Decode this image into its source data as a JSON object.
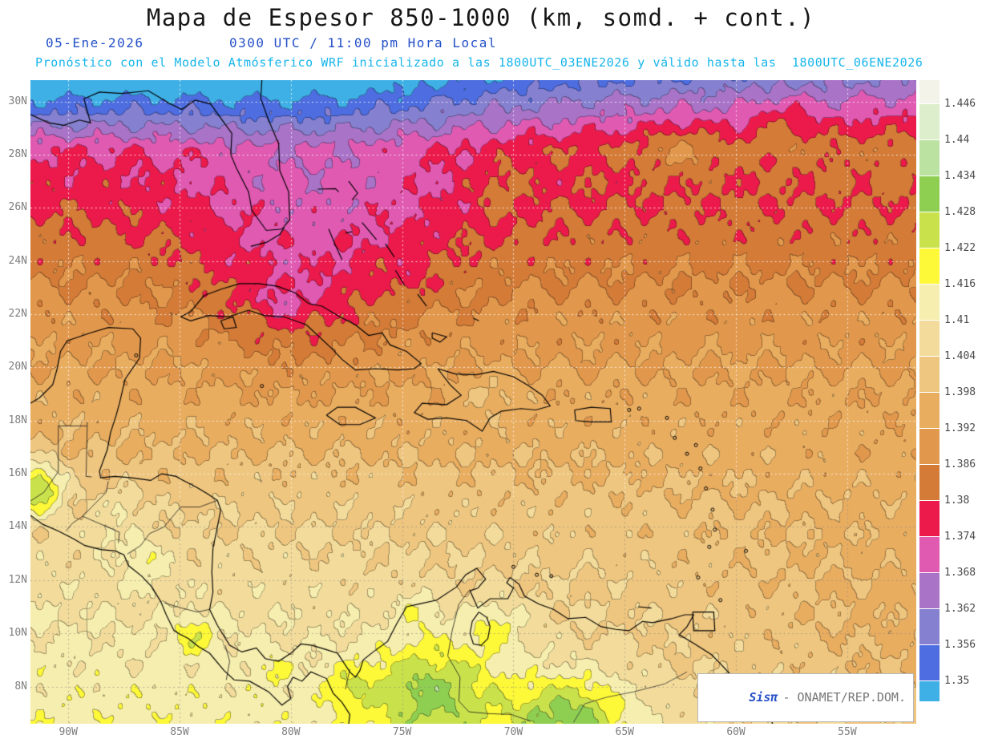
{
  "header": {
    "title": "Mapa de Espesor 850-1000 (km, somd. + cont.)",
    "date": "05-Ene-2026",
    "time": "0300 UTC / 11:00 pm Hora Local",
    "forecast": "Pronóstico con el Modelo Atmósferico WRF inicializado a las 1800UTC_03ENE2026 y válido hasta las  1800UTC_06ENE2026"
  },
  "watermark": {
    "brand": "Sisπ",
    "text": "- ONAMET/REP.DOM."
  },
  "colors": {
    "title_text": "#161616",
    "date_text": "#2450c8",
    "forecast_text": "#17b5ec",
    "axis_text": "#7e7e7e",
    "colorbar_text": "#4a4a4a"
  },
  "chart_data": {
    "type": "heatmap",
    "title": "Mapa de Espesor 850-1000 (km, somd. + cont.)",
    "variable": "Espesor 850-1000",
    "units": "km",
    "lon_ticks": [
      "90W",
      "85W",
      "80W",
      "75W",
      "70W",
      "65W",
      "60W",
      "55W"
    ],
    "lat_ticks": [
      "30N",
      "28N",
      "26N",
      "24N",
      "22N",
      "20N",
      "18N",
      "16N",
      "14N",
      "12N",
      "10N",
      "8N"
    ],
    "lon_range": [
      -91.7,
      -51.9
    ],
    "lat_range": [
      6.6,
      30.8
    ],
    "levels": [
      1.35,
      1.356,
      1.362,
      1.368,
      1.374,
      1.38,
      1.386,
      1.392,
      1.398,
      1.404,
      1.41,
      1.416,
      1.422,
      1.428,
      1.434,
      1.44,
      1.446
    ],
    "colorbar_labels": [
      "1.446",
      "1.44",
      "1.434",
      "1.428",
      "1.422",
      "1.416",
      "1.41",
      "1.404",
      "1.398",
      "1.392",
      "1.386",
      "1.38",
      "1.374",
      "1.368",
      "1.362",
      "1.356",
      "1.35"
    ],
    "palette": [
      "#3fb0e6",
      "#4d6de0",
      "#8680d0",
      "#a973c8",
      "#e05ab2",
      "#ec1a4b",
      "#d47b38",
      "#e2984c",
      "#e9ad60",
      "#efc67f",
      "#f3dc9b",
      "#f6eeae",
      "#fdf838",
      "#c9e24c",
      "#8ecf52",
      "#bce2a2",
      "#dceecb",
      "#f3f3ea"
    ],
    "legend_position": "right",
    "grid": "dotted",
    "field_model": {
      "base_anchors": [
        [
          32,
          1.332
        ],
        [
          30.5,
          1.345
        ],
        [
          29.5,
          1.356
        ],
        [
          28.8,
          1.366
        ],
        [
          28.2,
          1.374
        ],
        [
          25.8,
          1.38
        ],
        [
          23.5,
          1.386
        ],
        [
          20.5,
          1.392
        ],
        [
          17,
          1.398
        ],
        [
          14.5,
          1.404
        ],
        [
          11,
          1.4095
        ],
        [
          8,
          1.413
        ],
        [
          5.5,
          1.416
        ]
      ],
      "terms": [
        {
          "type": "tilt",
          "amp": 0.02,
          "lat_c": 30.5,
          "lat_s": 2.8
        },
        {
          "type": "gauss",
          "amp": -0.009,
          "lon_c": -78.5,
          "lon_s": 7.0,
          "lat_c": 26.5,
          "lat_s": 5.5
        },
        {
          "type": "gauss",
          "amp": -0.007,
          "lon_c": -80.0,
          "lon_s": 3.5,
          "lat_c": 22.5,
          "lat_s": 2.5
        },
        {
          "type": "secool",
          "amp": -0.015,
          "lat_c": 9.0,
          "lat_s": 7.0
        },
        {
          "type": "gauss",
          "amp": 0.026,
          "lon_c": -91.4,
          "lon_s": 1.2,
          "lat_c": 15.5,
          "lat_s": 1.0
        },
        {
          "type": "gauss",
          "amp": 0.006,
          "lon_c": -88.4,
          "lon_s": 0.8,
          "lat_c": 13.7,
          "lat_s": 0.6
        },
        {
          "type": "gauss",
          "amp": 0.009,
          "lon_c": -86.6,
          "lon_s": 1.1,
          "lat_c": 12.8,
          "lat_s": 0.9
        },
        {
          "type": "gauss",
          "amp": 0.01,
          "lon_c": -84.3,
          "lon_s": 1.0,
          "lat_c": 9.9,
          "lat_s": 0.8
        },
        {
          "type": "gauss",
          "amp": 0.006,
          "lon_c": -80.8,
          "lon_s": 0.9,
          "lat_c": 8.6,
          "lat_s": 0.7
        },
        {
          "type": "gauss",
          "amp": 0.008,
          "lon_c": -77.4,
          "lon_s": 1.1,
          "lat_c": 8.0,
          "lat_s": 0.8
        },
        {
          "type": "gauss",
          "amp": 0.02,
          "lon_c": -73.6,
          "lon_s": 3.0,
          "lat_c": 7.8,
          "lat_s": 2.0
        },
        {
          "type": "gauss",
          "amp": 0.022,
          "lon_c": -67.5,
          "lon_s": 2.6,
          "lat_c": 6.8,
          "lat_s": 1.6
        },
        {
          "type": "gauss",
          "amp": 0.01,
          "lon_c": -70.8,
          "lon_s": 1.2,
          "lat_c": 10.3,
          "lat_s": 0.9
        },
        {
          "type": "gauss",
          "amp": 0.007,
          "lon_c": -74.3,
          "lon_s": 0.9,
          "lat_c": 10.9,
          "lat_s": 0.7
        },
        {
          "type": "gauss",
          "amp": 0.006,
          "lon_c": -71.0,
          "lon_s": 1.3,
          "lat_c": 19.0,
          "lat_s": 0.7
        },
        {
          "type": "gauss",
          "amp": 0.007,
          "lon_c": -87.6,
          "lon_s": 0.9,
          "lat_c": 14.8,
          "lat_s": 0.7
        },
        {
          "type": "gauss",
          "amp": -0.006,
          "lon_c": -80.3,
          "lon_s": 0.9,
          "lat_c": 22.4,
          "lat_s": 0.6
        },
        {
          "type": "gauss",
          "amp": -0.005,
          "lon_c": -74.5,
          "lon_s": 0.8,
          "lat_c": 23.3,
          "lat_s": 0.6
        },
        {
          "type": "gauss",
          "amp": 0.006,
          "lon_c": -70.6,
          "lon_s": 1.2,
          "lat_c": 26.8,
          "lat_s": 0.9
        },
        {
          "type": "gauss",
          "amp": 0.006,
          "lon_c": -62.5,
          "lon_s": 1.5,
          "lat_c": 28.3,
          "lat_s": 1.0
        },
        {
          "type": "gauss",
          "amp": 0.006,
          "lon_c": -58.0,
          "lon_s": 1.3,
          "lat_c": 29.3,
          "lat_s": 0.9
        },
        {
          "type": "wave",
          "amp": 0.0026,
          "f_lon": 2.3,
          "p_lon": 0.8,
          "f_lat": 3.1,
          "p_lat": 1.3
        },
        {
          "type": "wave",
          "amp": 0.0019,
          "f_lon": 5.1,
          "p_lon": 2.0,
          "f_lat": 4.3,
          "p_lat": 0.6
        },
        {
          "type": "wave",
          "amp": 0.0013,
          "f_lon": 9.7,
          "p_lon": 4.1,
          "f_lat": 8.3,
          "p_lat": 2.4
        }
      ]
    }
  }
}
